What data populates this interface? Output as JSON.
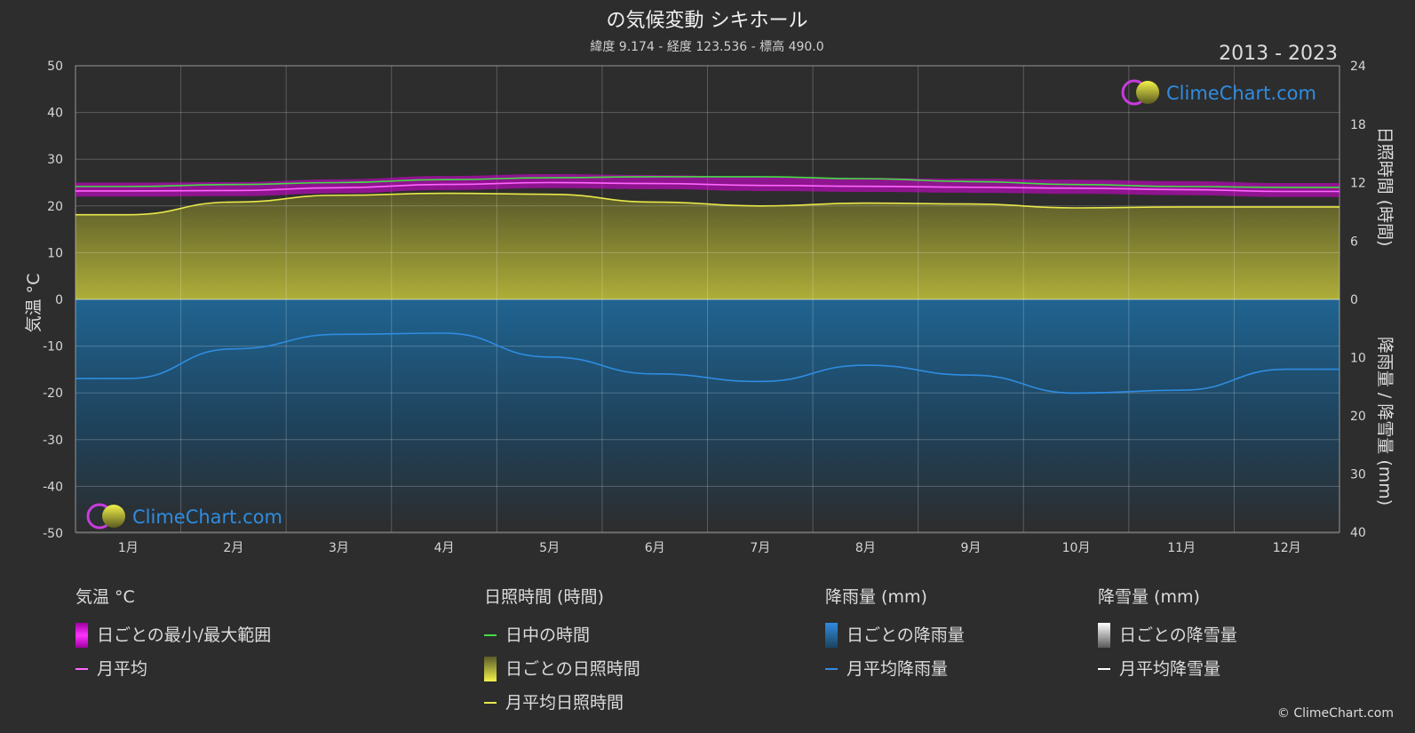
{
  "title": "の気候変動 シキホール",
  "subtitle": "緯度 9.174 - 経度 123.536 - 標高 490.0",
  "year_range": "2013 - 2023",
  "brand": "ClimeChart.com",
  "copyright": "© ClimeChart.com",
  "axes": {
    "left_label": "気温 °C",
    "right_top_label": "日照時間 (時間)",
    "right_bottom_label": "降雨量 / 降雪量 (mm)"
  },
  "legend": {
    "temperature": {
      "heading": "気温 °C",
      "range": "日ごとの最小/最大範囲",
      "mean": "月平均"
    },
    "sunshine": {
      "heading": "日照時間 (時間)",
      "daylight": "日中の時間",
      "daily": "日ごとの日照時間",
      "mean": "月平均日照時間"
    },
    "rain": {
      "heading": "降雨量 (mm)",
      "daily": "日ごとの降雨量",
      "mean": "月平均降雨量"
    },
    "snow": {
      "heading": "降雪量 (mm)",
      "daily": "日ごとの降雪量",
      "mean": "月平均降雪量"
    }
  },
  "colors": {
    "background": "#2d2d2d",
    "temp_range": "#e000e0",
    "temp_mean": "#ff66ff",
    "daylight": "#44dd44",
    "sunshine_fill": "#8f8f2e",
    "sunshine_mean": "#e8e84a",
    "rain_fill": "#1f6c9e",
    "rain_mean": "#2f8ce0",
    "snow": "#ffffff",
    "brand_text": "#2f8ce0"
  },
  "chart_data": {
    "type": "area",
    "categories": [
      "1月",
      "2月",
      "3月",
      "4月",
      "5月",
      "6月",
      "7月",
      "8月",
      "9月",
      "10月",
      "11月",
      "12月"
    ],
    "y_left": {
      "label": "気温 °C",
      "range": [
        -50,
        50
      ],
      "ticks": [
        50,
        40,
        30,
        20,
        10,
        0,
        -10,
        -20,
        -30,
        -40,
        -50
      ]
    },
    "y_right_top": {
      "label": "日照時間 (時間)",
      "range": [
        0,
        24
      ],
      "ticks": [
        24,
        18,
        12,
        6,
        0
      ]
    },
    "y_right_bottom": {
      "label": "降雨量 / 降雪量 (mm)",
      "range": [
        0,
        40
      ],
      "ticks": [
        0,
        10,
        20,
        30,
        40
      ]
    },
    "series": [
      {
        "name": "日中の時間",
        "axis": "right_top",
        "values": [
          11.6,
          11.8,
          12.0,
          12.3,
          12.5,
          12.6,
          12.6,
          12.4,
          12.1,
          11.8,
          11.6,
          11.5
        ]
      },
      {
        "name": "月平均",
        "axis": "left",
        "values": [
          23.2,
          23.3,
          23.9,
          24.6,
          25.0,
          24.8,
          24.4,
          24.2,
          24.0,
          23.8,
          23.5,
          23.1
        ]
      },
      {
        "name": "月平均日照時間",
        "axis": "right_top",
        "values": [
          8.7,
          10.0,
          10.7,
          10.9,
          10.8,
          10.0,
          9.6,
          9.9,
          9.8,
          9.4,
          9.5,
          9.5
        ]
      },
      {
        "name": "月平均降雨量",
        "axis": "right_bottom",
        "values": [
          13.6,
          8.5,
          6.0,
          5.8,
          9.9,
          12.8,
          14.1,
          11.3,
          13.0,
          16.1,
          15.6,
          12.0
        ]
      },
      {
        "name": "月平均降雪量",
        "axis": "right_bottom",
        "values": [
          0,
          0,
          0,
          0,
          0,
          0,
          0,
          0,
          0,
          0,
          0,
          0
        ]
      }
    ],
    "grid": true,
    "legend_position": "bottom"
  }
}
